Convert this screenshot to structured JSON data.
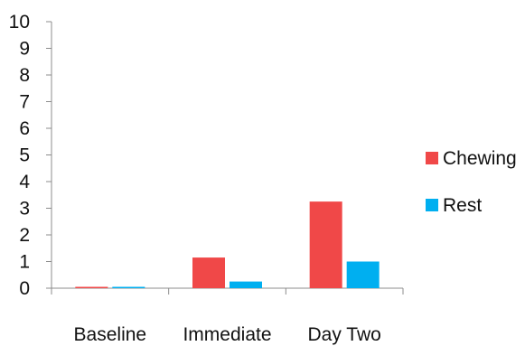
{
  "chart_data": {
    "type": "bar",
    "title": "",
    "xlabel": "",
    "ylabel": "",
    "categories": [
      "Baseline",
      "Immediate",
      "Day Two"
    ],
    "series": [
      {
        "name": "Chewing",
        "color": "#f04848",
        "values": [
          0.05,
          1.15,
          3.25
        ]
      },
      {
        "name": "Rest",
        "color": "#00aff0",
        "values": [
          0.05,
          0.25,
          1.0
        ]
      }
    ],
    "ylim": [
      0,
      10
    ],
    "yticks": [
      0,
      1,
      2,
      3,
      4,
      5,
      6,
      7,
      8,
      9,
      10
    ],
    "grid": false,
    "legend_position": "right"
  }
}
